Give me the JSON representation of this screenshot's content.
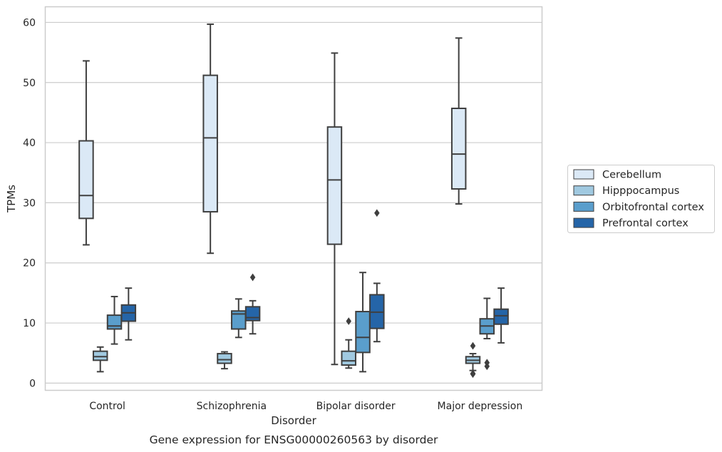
{
  "caption": "Gene expression for ENSG00000260563 by disorder",
  "chart_data": {
    "type": "box",
    "title": "",
    "xlabel": "Disorder",
    "ylabel": "TPMs",
    "ylim": [
      -1.2,
      62.6
    ],
    "yticks": [
      0,
      10,
      20,
      30,
      40,
      50,
      60
    ],
    "grid": true,
    "legend_position": "right",
    "categories": [
      "Control",
      "Schizophrenia",
      "Bipolar disorder",
      "Major depression"
    ],
    "series": [
      {
        "name": "Cerebellum",
        "color": "#dbe9f6",
        "boxes": [
          {
            "q1": 27.4,
            "median": 31.2,
            "q3": 40.3,
            "whislo": 23.0,
            "whishi": 53.6,
            "fliers": []
          },
          {
            "q1": 28.5,
            "median": 40.8,
            "q3": 51.2,
            "whislo": 21.6,
            "whishi": 59.7,
            "fliers": []
          },
          {
            "q1": 23.1,
            "median": 33.8,
            "q3": 42.6,
            "whislo": 3.1,
            "whishi": 54.9,
            "fliers": []
          },
          {
            "q1": 32.3,
            "median": 38.1,
            "q3": 45.7,
            "whislo": 29.8,
            "whishi": 57.4,
            "fliers": []
          }
        ]
      },
      {
        "name": "Hipppocampus",
        "color": "#a0c9e0",
        "boxes": [
          {
            "q1": 3.8,
            "median": 4.4,
            "q3": 5.3,
            "whislo": 1.9,
            "whishi": 6.0,
            "fliers": []
          },
          {
            "q1": 3.3,
            "median": 3.9,
            "q3": 4.9,
            "whislo": 2.4,
            "whishi": 5.2,
            "fliers": []
          },
          {
            "q1": 3.0,
            "median": 3.7,
            "q3": 5.3,
            "whislo": 2.5,
            "whishi": 7.2,
            "fliers": [
              10.3
            ]
          },
          {
            "q1": 3.3,
            "median": 3.8,
            "q3": 4.4,
            "whislo": 2.1,
            "whishi": 4.9,
            "fliers": [
              1.6,
              1.5,
              6.2
            ]
          }
        ]
      },
      {
        "name": "Orbitofrontal cortex",
        "color": "#5a9ecc",
        "boxes": [
          {
            "q1": 9.0,
            "median": 9.5,
            "q3": 11.3,
            "whislo": 6.5,
            "whishi": 14.4,
            "fliers": []
          },
          {
            "q1": 9.0,
            "median": 11.5,
            "q3": 12.0,
            "whislo": 7.6,
            "whishi": 14.0,
            "fliers": []
          },
          {
            "q1": 5.1,
            "median": 7.6,
            "q3": 11.9,
            "whislo": 1.9,
            "whishi": 18.4,
            "fliers": []
          },
          {
            "q1": 8.2,
            "median": 9.5,
            "q3": 10.7,
            "whislo": 7.4,
            "whishi": 14.1,
            "fliers": [
              3.4,
              2.8
            ]
          }
        ]
      },
      {
        "name": "Prefrontal cortex",
        "color": "#2565a8",
        "boxes": [
          {
            "q1": 10.3,
            "median": 11.7,
            "q3": 13.0,
            "whislo": 7.2,
            "whishi": 15.8,
            "fliers": []
          },
          {
            "q1": 10.4,
            "median": 10.9,
            "q3": 12.7,
            "whislo": 8.2,
            "whishi": 13.7,
            "fliers": [
              17.6
            ]
          },
          {
            "q1": 9.1,
            "median": 11.8,
            "q3": 14.7,
            "whislo": 6.9,
            "whishi": 16.6,
            "fliers": [
              28.3
            ]
          },
          {
            "q1": 9.8,
            "median": 11.2,
            "q3": 12.3,
            "whislo": 6.7,
            "whishi": 15.8,
            "fliers": []
          }
        ]
      }
    ]
  }
}
